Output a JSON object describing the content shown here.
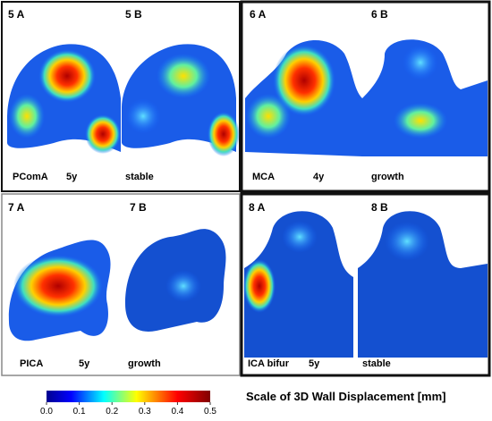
{
  "panels": [
    {
      "label_a": "5 A",
      "label_b": "5 B",
      "vessel": "PComA",
      "follow_up": "5y",
      "outcome": "stable"
    },
    {
      "label_a": "6 A",
      "label_b": "6 B",
      "vessel": "MCA",
      "follow_up": "4y",
      "outcome": "growth"
    },
    {
      "label_a": "7 A",
      "label_b": "7 B",
      "vessel": "PICA",
      "follow_up": "5y",
      "outcome": "growth"
    },
    {
      "label_a": "8 A",
      "label_b": "8 B",
      "vessel": "ICA bifur",
      "follow_up": "5y",
      "outcome": "stable"
    }
  ],
  "colorbar": {
    "title": "Scale of 3D Wall Displacement [mm]",
    "range": [
      0,
      0.5
    ],
    "ticks": [
      {
        "value": 0,
        "label": "0.0"
      },
      0.1,
      0.2,
      0.3,
      0.4,
      0.5
    ]
  }
}
